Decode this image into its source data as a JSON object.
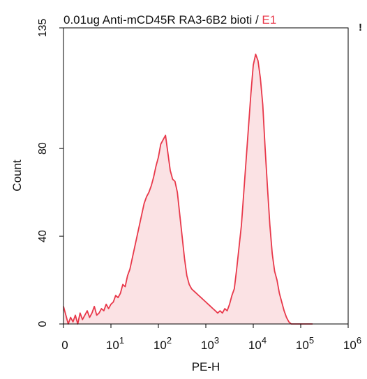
{
  "chart_data": {
    "type": "area",
    "title_main": "0.01ug Anti-mCD45R RA3-6B2 bioti",
    "title_separator": " / ",
    "title_gate": "E1",
    "title_mark": "!",
    "xlabel": "PE-H",
    "ylabel": "Count",
    "x_scale": "log",
    "ylim": [
      0,
      135
    ],
    "y_ticks": [
      {
        "value": 0,
        "label": "0"
      },
      {
        "value": 40,
        "label": "40"
      },
      {
        "value": 80,
        "label": "80"
      },
      {
        "value": 135,
        "label": "135"
      }
    ],
    "x_ticks": [
      {
        "value": 0,
        "label": "0"
      },
      {
        "value": 10,
        "label": "10",
        "exp": "1"
      },
      {
        "value": 100,
        "label": "10",
        "exp": "2"
      },
      {
        "value": 1000,
        "label": "10",
        "exp": "3"
      },
      {
        "value": 10000,
        "label": "10",
        "exp": "4"
      },
      {
        "value": 100000,
        "label": "10",
        "exp": "5"
      },
      {
        "value": 1000000,
        "label": "10",
        "exp": "6"
      }
    ],
    "grid": false,
    "colors": {
      "series": "#e8384a",
      "fill": "#fbe2e4",
      "gate_text": "#e8384a",
      "axis": "#000000"
    },
    "series": [
      {
        "decades": [
          0.0,
          0.05,
          0.1,
          0.15,
          0.2,
          0.25,
          0.3,
          0.35,
          0.4,
          0.45,
          0.5,
          0.55,
          0.6,
          0.65,
          0.7,
          0.75,
          0.8,
          0.85,
          0.9,
          0.95,
          1.0,
          1.05,
          1.1,
          1.15,
          1.2,
          1.25,
          1.3,
          1.35,
          1.4,
          1.45,
          1.5,
          1.55,
          1.6,
          1.65,
          1.7,
          1.75,
          1.8,
          1.85,
          1.9,
          1.95,
          2.0,
          2.05,
          2.1,
          2.15,
          2.2,
          2.25,
          2.3,
          2.35,
          2.4,
          2.45,
          2.5,
          2.55,
          2.6,
          2.65,
          2.7,
          2.75,
          2.8,
          2.85,
          2.9,
          2.95,
          3.0,
          3.05,
          3.1,
          3.15,
          3.2,
          3.25,
          3.3,
          3.35,
          3.4,
          3.45,
          3.5,
          3.55,
          3.6,
          3.65,
          3.7,
          3.75,
          3.8,
          3.85,
          3.9,
          3.95,
          4.0,
          4.05,
          4.1,
          4.15,
          4.2,
          4.25,
          4.3,
          4.35,
          4.4,
          4.45,
          4.5,
          4.55,
          4.6,
          4.65,
          4.7,
          4.75,
          4.8,
          4.85,
          4.9,
          4.95,
          5.0,
          5.05,
          5.1,
          5.15,
          5.2,
          5.25
        ],
        "counts": [
          8,
          4,
          0,
          3,
          1,
          4,
          0,
          5,
          2,
          4,
          6,
          3,
          5,
          8,
          4,
          5,
          7,
          6,
          9,
          7,
          9,
          10,
          13,
          12,
          14,
          18,
          17,
          22,
          25,
          30,
          35,
          40,
          45,
          50,
          55,
          58,
          60,
          63,
          67,
          72,
          76,
          82,
          84,
          86,
          78,
          70,
          66,
          65,
          60,
          50,
          40,
          30,
          22,
          18,
          16,
          15,
          14,
          13,
          12,
          11,
          10,
          9,
          8,
          7,
          6,
          5,
          6,
          5,
          7,
          6,
          9,
          13,
          16,
          25,
          35,
          45,
          60,
          75,
          90,
          105,
          118,
          123,
          120,
          112,
          100,
          80,
          62,
          45,
          32,
          24,
          20,
          14,
          10,
          6,
          3,
          1,
          0,
          0,
          0,
          0,
          0,
          0,
          0,
          0,
          0,
          0
        ]
      }
    ]
  }
}
